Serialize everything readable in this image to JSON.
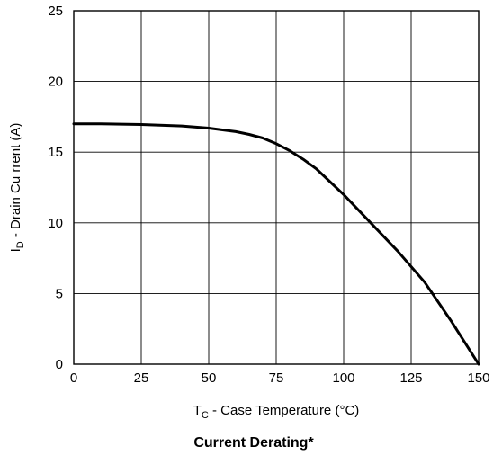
{
  "chart_data": {
    "type": "line",
    "title": "Current Derating*",
    "xlabel": {
      "prefix": "T",
      "sub": "C",
      "suffix": " - Case Temperature (°C)"
    },
    "ylabel": {
      "prefix": "I",
      "sub": "D",
      "suffix": " - Drain Cu rrent (A)"
    },
    "xlim": [
      0,
      150
    ],
    "ylim": [
      0,
      25
    ],
    "xticks": [
      0,
      25,
      50,
      75,
      100,
      125,
      150
    ],
    "yticks": [
      0,
      5,
      10,
      15,
      20,
      25
    ],
    "grid": true,
    "legend": "none",
    "line_color": "#000000",
    "series": [
      {
        "x": [
          0,
          10,
          25,
          40,
          50,
          60,
          65,
          70,
          75,
          80,
          85,
          90,
          100,
          110,
          120,
          130,
          140,
          150
        ],
        "y": [
          17.0,
          17.0,
          16.95,
          16.85,
          16.7,
          16.45,
          16.25,
          16.0,
          15.6,
          15.1,
          14.5,
          13.8,
          12.0,
          10.0,
          8.0,
          5.8,
          3.0,
          0.0
        ]
      }
    ]
  }
}
